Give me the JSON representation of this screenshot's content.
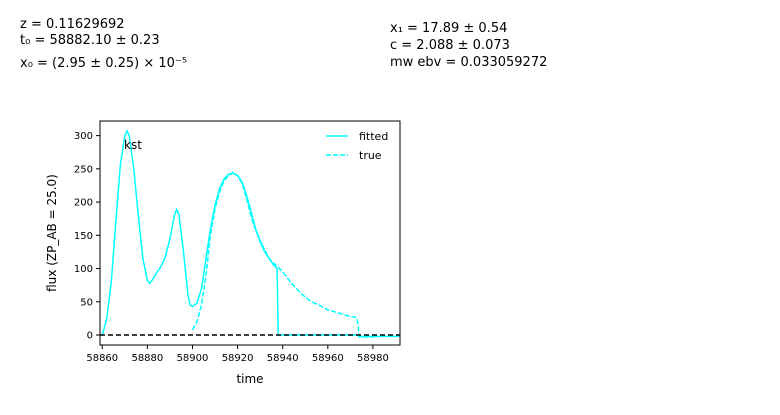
{
  "params_left": [
    "z = 0.11629692",
    "t₀ = 58882.10 ± 0.23",
    "x₀ = (2.95 ± 0.25) × 10⁻⁵"
  ],
  "params_right": [
    "x₁ = 17.89 ± 0.54",
    "c = 2.088 ± 0.073",
    "mw ebv = 0.033059272"
  ],
  "chart_data": {
    "type": "line",
    "title": "",
    "band_label": "kst",
    "xlabel": "time",
    "ylabel": "flux (ZP_AB = 25.0)",
    "xlim": [
      58859,
      58992
    ],
    "ylim": [
      -15,
      322
    ],
    "xticks": [
      58860,
      58880,
      58900,
      58920,
      58940,
      58960,
      58980
    ],
    "yticks": [
      0,
      50,
      100,
      150,
      200,
      250,
      300
    ],
    "legend_position": "top-right",
    "colors": {
      "fitted": "#00ffff",
      "true": "#00ffff",
      "zero_line": "#000000"
    },
    "series": [
      {
        "name": "fitted",
        "style": "solid",
        "x": [
          58860,
          58862,
          58864,
          58866,
          58868,
          58870,
          58871,
          58872,
          58874,
          58876,
          58878,
          58880,
          58881,
          58882,
          58884,
          58886,
          58888,
          58890,
          58892,
          58893,
          58894,
          58896,
          58898,
          58899,
          58900,
          58902,
          58904,
          58906,
          58908,
          58910,
          58912,
          58914,
          58916,
          58918,
          58920,
          58922,
          58924,
          58926,
          58928,
          58930,
          58932,
          58934,
          58936,
          58937.5,
          58938,
          58940,
          58960,
          58972,
          58973,
          58974,
          58980,
          58992
        ],
        "y": [
          0,
          25,
          80,
          170,
          255,
          300,
          307,
          300,
          250,
          180,
          115,
          82,
          78,
          82,
          93,
          103,
          118,
          145,
          180,
          189,
          182,
          125,
          60,
          45,
          43,
          48,
          70,
          115,
          160,
          195,
          220,
          235,
          242,
          243,
          240,
          230,
          210,
          185,
          160,
          140,
          125,
          115,
          105,
          100,
          0,
          0,
          0,
          0,
          0,
          -2,
          -2,
          -2
        ]
      },
      {
        "name": "true",
        "style": "dashed",
        "x": [
          58900,
          58902,
          58904,
          58906,
          58908,
          58910,
          58912,
          58914,
          58916,
          58918,
          58920,
          58922,
          58924,
          58926,
          58928,
          58930,
          58932,
          58934,
          58936,
          58938,
          58940,
          58942,
          58944,
          58946,
          58948,
          58950,
          58952,
          58954,
          58956,
          58958,
          58960,
          58962,
          58964,
          58966,
          58968,
          58970,
          58972,
          58973,
          58974,
          58980,
          58982
        ],
        "y": [
          8,
          20,
          45,
          90,
          150,
          190,
          215,
          232,
          240,
          245,
          240,
          228,
          205,
          178,
          158,
          142,
          128,
          115,
          108,
          102,
          95,
          86,
          78,
          70,
          63,
          57,
          52,
          48,
          45,
          42,
          38,
          36,
          34,
          32,
          30,
          28,
          27,
          25,
          -3,
          -3,
          -3
        ]
      }
    ]
  }
}
